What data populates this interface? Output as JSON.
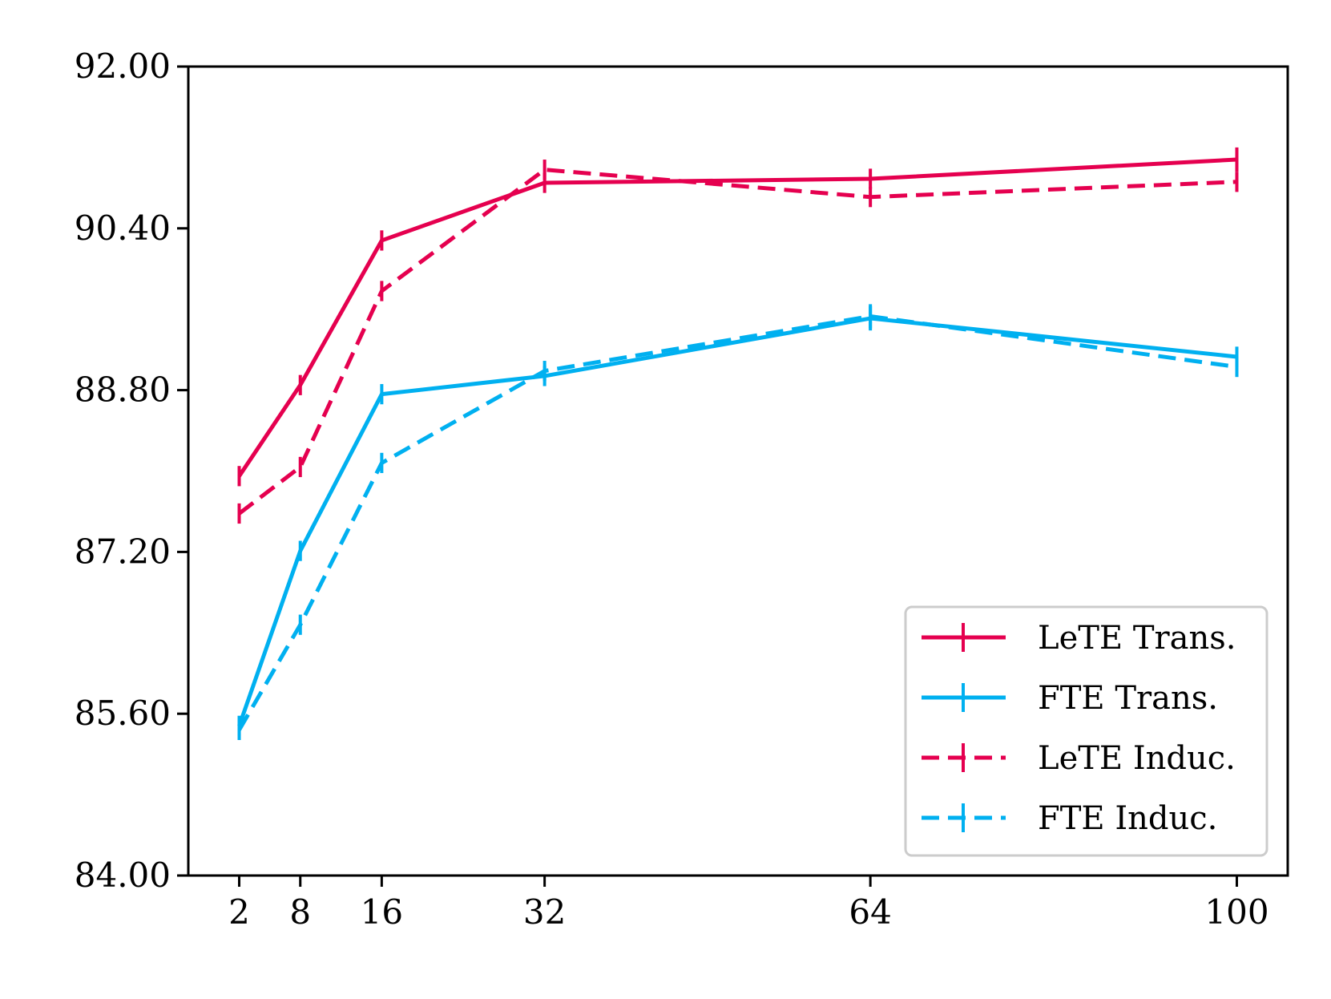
{
  "chart_data": {
    "type": "line",
    "x": [
      2,
      8,
      16,
      32,
      64,
      100
    ],
    "x_tick_labels": [
      "2",
      "8",
      "16",
      "32",
      "64",
      "100"
    ],
    "xlim": [
      -3,
      105
    ],
    "ylim": [
      84.0,
      92.0
    ],
    "y_ticks": [
      84.0,
      85.6,
      87.2,
      88.8,
      90.4,
      92.0
    ],
    "y_tick_labels": [
      "84.00",
      "85.60",
      "87.20",
      "88.80",
      "90.40",
      "92.00"
    ],
    "grid": false,
    "legend_position": "bottom-right",
    "series": [
      {
        "name": "LeTE Trans.",
        "color": "#e5004f",
        "style": "solid",
        "values": [
          87.95,
          88.85,
          90.28,
          90.85,
          90.89,
          91.08
        ],
        "err": [
          0.1,
          0.1,
          0.1,
          0.1,
          0.1,
          0.12
        ]
      },
      {
        "name": "FTE Trans.",
        "color": "#00b0f0",
        "style": "solid",
        "values": [
          85.48,
          87.21,
          88.76,
          88.94,
          89.51,
          89.13
        ],
        "err": [
          0.1,
          0.1,
          0.1,
          0.1,
          0.12,
          0.1
        ]
      },
      {
        "name": "LeTE Induc.",
        "color": "#e5004f",
        "style": "dashed",
        "values": [
          87.58,
          88.04,
          89.78,
          90.98,
          90.71,
          90.86
        ],
        "err": [
          0.1,
          0.1,
          0.1,
          0.1,
          0.1,
          0.1
        ]
      },
      {
        "name": "FTE Induc.",
        "color": "#00b0f0",
        "style": "dashed",
        "values": [
          85.44,
          86.48,
          88.08,
          88.99,
          89.53,
          89.03
        ],
        "err": [
          0.1,
          0.1,
          0.1,
          0.1,
          0.12,
          0.1
        ]
      }
    ]
  }
}
